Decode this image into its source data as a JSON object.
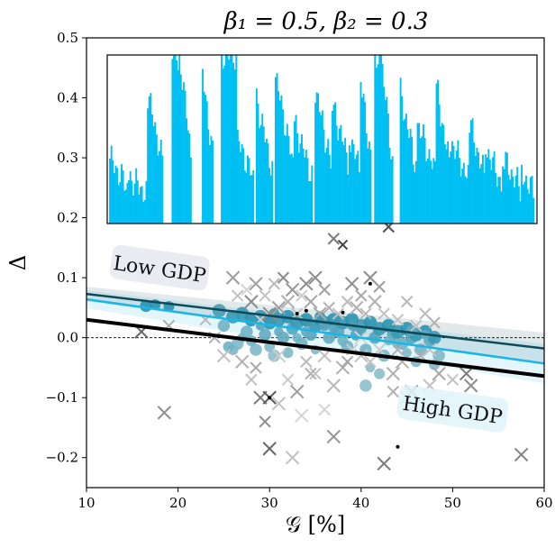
{
  "chart_data": {
    "type": "scatter",
    "title": "β₁ = 0.5, β₂ = 0.3",
    "xlabel": "𝒢 [%]",
    "ylabel": "Δ",
    "xlim": [
      10,
      60
    ],
    "ylim": [
      -0.25,
      0.5
    ],
    "xticks": [
      "10",
      "20",
      "30",
      "40",
      "50",
      "60"
    ],
    "yticks": [
      "−0.2",
      "−0.1",
      "0.0",
      "0.1",
      "0.2",
      "0.3",
      "0.4",
      "0.5"
    ],
    "reference_line_y": 0.0,
    "annotations": [
      {
        "text": "Low GDP",
        "x": 18,
        "y": 0.115,
        "rotation_deg": 8,
        "box_color": "#e6e9ee"
      },
      {
        "text": "High GDP",
        "x": 50,
        "y": -0.12,
        "rotation_deg": 8,
        "box_color": "#dff3fb"
      }
    ],
    "fit_lines": [
      {
        "name": "Low GDP fit",
        "color": "#0e4a57",
        "x": [
          10,
          60
        ],
        "y": [
          0.073,
          -0.018
        ],
        "band": 0.012
      },
      {
        "name": "High GDP fit",
        "color": "#1ab6e8",
        "x": [
          10,
          60
        ],
        "y": [
          0.064,
          -0.043
        ],
        "band": 0.015
      },
      {
        "name": "Overall fit",
        "color": "#000000",
        "x": [
          10,
          60
        ],
        "y": [
          0.03,
          -0.064
        ],
        "band": 0.0
      }
    ],
    "series": [
      {
        "marker": "circle",
        "color": "#0e86a8",
        "x": [
          16.5,
          17.5,
          19,
          24.5,
          25,
          26,
          26.5,
          27,
          27.5,
          28,
          28.5,
          29,
          29.5,
          30,
          30.5,
          31,
          31.5,
          32,
          32.5,
          33,
          33.5,
          34,
          34.5,
          35,
          35.5,
          36,
          36.5,
          37,
          37.5,
          38,
          38.5,
          39,
          39.5,
          40,
          40.5,
          41,
          41.5,
          42,
          42.5,
          43,
          43.5,
          44,
          44.5,
          45,
          45.5,
          46,
          46.5,
          47,
          47.5,
          48,
          48.5,
          26,
          28,
          30,
          32,
          34,
          36,
          38,
          40,
          42,
          44,
          46,
          48,
          27,
          29,
          31,
          33,
          35,
          37,
          39,
          41,
          43,
          45,
          47,
          25.5,
          30.5,
          35.5,
          40.5,
          45.5
        ],
        "y": [
          0.053,
          0.055,
          0.052,
          0.045,
          0.02,
          0.035,
          -0.01,
          0.04,
          0.01,
          0.03,
          -0.02,
          0.035,
          0.005,
          0.025,
          -0.03,
          0.03,
          0.0,
          0.035,
          0.015,
          0.025,
          -0.01,
          0.03,
          0.005,
          0.02,
          0.03,
          0.025,
          0.0,
          0.03,
          0.01,
          0.025,
          -0.015,
          0.03,
          0.005,
          0.02,
          -0.02,
          0.025,
          0.0,
          0.015,
          -0.03,
          0.02,
          0.005,
          0.01,
          -0.01,
          0.015,
          0.0,
          0.005,
          -0.02,
          0.01,
          -0.005,
          0.0,
          -0.03,
          -0.02,
          -0.005,
          -0.015,
          -0.025,
          0.01,
          0.02,
          -0.005,
          0.015,
          -0.06,
          -0.01,
          -0.04,
          -0.045,
          0.0,
          0.02,
          0.01,
          0.0,
          -0.02,
          0.015,
          0.02,
          -0.05,
          -0.005,
          -0.025,
          0.005,
          -0.015,
          0.04,
          0.035,
          -0.08,
          0.012
        ],
        "size": [
          9,
          8,
          8,
          10,
          9,
          10,
          9,
          10,
          9,
          10,
          9,
          10,
          9,
          10,
          9,
          10,
          9,
          10,
          9,
          10,
          9,
          10,
          9,
          10,
          9,
          10,
          9,
          10,
          9,
          10,
          9,
          10,
          9,
          10,
          9,
          10,
          9,
          10,
          9,
          10,
          9,
          10,
          9,
          10,
          9,
          10,
          9,
          10,
          9,
          10,
          9,
          8,
          8,
          8,
          8,
          8,
          8,
          8,
          8,
          8,
          8,
          8,
          8,
          7,
          7,
          7,
          7,
          7,
          7,
          7,
          7,
          7,
          7,
          7,
          8,
          8,
          8,
          9,
          8
        ],
        "shade": [
          0.8,
          0.8,
          0.8,
          0.6,
          0.3,
          0.7,
          0.2,
          0.7,
          0.3,
          0.8,
          0.2,
          0.7,
          0.4,
          0.8,
          0.1,
          0.7,
          0.4,
          0.8,
          0.5,
          0.7,
          0.3,
          0.8,
          0.5,
          0.7,
          0.8,
          0.7,
          0.4,
          0.8,
          0.5,
          0.7,
          0.3,
          0.8,
          0.5,
          0.7,
          0.3,
          0.8,
          0.5,
          0.7,
          0.2,
          0.8,
          0.5,
          0.7,
          0.3,
          0.8,
          0.5,
          0.7,
          0.3,
          0.8,
          0.4,
          0.7,
          0.2,
          0.2,
          0.3,
          0.2,
          0.2,
          0.4,
          0.5,
          0.3,
          0.5,
          0.1,
          0.3,
          0.2,
          0.2,
          0.3,
          0.5,
          0.4,
          0.3,
          0.2,
          0.5,
          0.6,
          0.1,
          0.3,
          0.2,
          0.4,
          0.3,
          0.7,
          0.7,
          0.1,
          0.4
        ]
      },
      {
        "marker": "x",
        "color": "#333333",
        "x": [
          16,
          18.5,
          19,
          24,
          25,
          26,
          26.5,
          27,
          27.5,
          28,
          28,
          28.5,
          29,
          29,
          29.5,
          30,
          30,
          30.5,
          31,
          31,
          31.5,
          32,
          32,
          32.5,
          33,
          33,
          33.5,
          34,
          34,
          34.5,
          35,
          35,
          35.5,
          36,
          36,
          36.5,
          37,
          37,
          37.5,
          38,
          38,
          38.5,
          39,
          39,
          39.5,
          40,
          40,
          40.5,
          41,
          41,
          41.5,
          42,
          42,
          42.5,
          43,
          43.5,
          44,
          44.5,
          45,
          45.5,
          46,
          46.5,
          47,
          47.5,
          48,
          48.5,
          50,
          51.5,
          52,
          57.5,
          30,
          32.5,
          36,
          42.5,
          28.5,
          37,
          43.5,
          29.5,
          31,
          34.5,
          40,
          44,
          47.5,
          38.5,
          45,
          23,
          33.5
        ],
        "y": [
          0.01,
          -0.125,
          0.02,
          0.0,
          -0.03,
          0.1,
          0.07,
          -0.04,
          0.08,
          0.06,
          -0.07,
          0.09,
          0.03,
          -0.1,
          0.07,
          0.04,
          -0.185,
          0.09,
          0.05,
          -0.11,
          0.1,
          0.06,
          -0.07,
          0.08,
          0.04,
          -0.09,
          0.07,
          0.09,
          -0.04,
          0.06,
          0.1,
          -0.06,
          0.04,
          0.08,
          -0.03,
          0.05,
          0.165,
          -0.08,
          0.04,
          0.155,
          -0.05,
          0.06,
          0.09,
          -0.02,
          0.05,
          0.07,
          -0.03,
          0.04,
          0.1,
          -0.04,
          0.06,
          0.085,
          -0.02,
          0.04,
          0.185,
          -0.06,
          0.03,
          -0.04,
          0.06,
          -0.09,
          0.02,
          -0.03,
          0.04,
          -0.02,
          0.025,
          -0.06,
          -0.07,
          -0.06,
          -0.08,
          -0.195,
          -0.1,
          -0.2,
          -0.12,
          -0.21,
          -0.05,
          -0.165,
          -0.09,
          -0.14,
          -0.03,
          -0.06,
          0.0,
          -0.02,
          -0.08,
          -0.04,
          -0.1,
          0.03,
          -0.13
        ],
        "size": [
          7,
          7,
          6,
          6,
          7,
          7,
          6,
          7,
          6,
          7,
          6,
          7,
          6,
          7,
          6,
          7,
          7,
          6,
          7,
          7,
          6,
          7,
          6,
          7,
          6,
          7,
          6,
          7,
          6,
          7,
          7,
          6,
          7,
          6,
          7,
          6,
          6,
          7,
          6,
          5,
          7,
          6,
          7,
          6,
          7,
          6,
          7,
          6,
          7,
          6,
          7,
          6,
          7,
          6,
          6,
          7,
          6,
          7,
          6,
          7,
          6,
          7,
          6,
          7,
          6,
          7,
          6,
          7,
          7,
          7,
          7,
          7,
          6,
          7,
          6,
          7,
          6,
          6,
          7,
          6,
          7,
          6,
          7,
          6,
          7,
          6,
          7
        ],
        "shade": [
          0.7,
          0.5,
          0.3,
          0.3,
          0.2,
          0.4,
          0.2,
          0.3,
          0.1,
          0.5,
          0.2,
          0.4,
          0.15,
          0.6,
          0.2,
          0.5,
          0.7,
          0.25,
          0.4,
          0.2,
          0.5,
          0.3,
          0.15,
          0.45,
          0.2,
          0.4,
          0.15,
          0.5,
          0.25,
          0.35,
          0.5,
          0.2,
          0.35,
          0.4,
          0.2,
          0.3,
          0.6,
          0.25,
          0.2,
          0.9,
          0.3,
          0.25,
          0.5,
          0.15,
          0.3,
          0.35,
          0.2,
          0.25,
          0.5,
          0.2,
          0.3,
          0.4,
          0.15,
          0.2,
          0.85,
          0.3,
          0.2,
          0.3,
          0.25,
          0.5,
          0.2,
          0.3,
          0.25,
          0.2,
          0.3,
          0.35,
          0.2,
          0.6,
          0.5,
          0.55,
          0.8,
          0.2,
          0.1,
          0.6,
          0.35,
          0.45,
          0.3,
          0.5,
          0.15,
          0.3,
          0.1,
          0.3,
          0.2,
          0.35,
          0.15,
          0.25,
          0.1,
          0.2
        ]
      },
      {
        "marker": "dot",
        "color": "#000000",
        "x": [
          30,
          34,
          38,
          44,
          33,
          41
        ],
        "y": [
          -0.1,
          0.045,
          0.042,
          -0.182,
          0.04,
          0.09
        ],
        "size": [
          2,
          2,
          2,
          2,
          2,
          2
        ],
        "shade": [
          1,
          1,
          1,
          1,
          1,
          1
        ]
      }
    ],
    "inset": {
      "type": "bar",
      "color": "#00bff3",
      "y_bottom": 0.19,
      "y_top": 0.475,
      "segments": [
        {
          "start": 12.5,
          "end": 14.5,
          "top": 0.3,
          "bottom": 0.19,
          "decay": 0.6
        },
        {
          "start": 14.5,
          "end": 16.5,
          "top": 0.27,
          "bottom": 0.19,
          "decay": 0.5
        },
        {
          "start": 16.5,
          "end": 18.2,
          "top": 0.41,
          "bottom": 0.19,
          "decay": 0.7
        },
        {
          "start": 19.1,
          "end": 20.0,
          "top": 0.475,
          "bottom": 0.19,
          "decay": 0.0
        },
        {
          "start": 20.0,
          "end": 21.2,
          "top": 0.46,
          "bottom": 0.19,
          "decay": 0.75
        },
        {
          "start": 22.3,
          "end": 23.5,
          "top": 0.44,
          "bottom": 0.19,
          "decay": 0.7
        },
        {
          "start": 24.3,
          "end": 26.0,
          "top": 0.475,
          "bottom": 0.19,
          "decay": 0.0
        },
        {
          "start": 26.0,
          "end": 27.8,
          "top": 0.33,
          "bottom": 0.19,
          "decay": 0.6
        },
        {
          "start": 28.0,
          "end": 29.8,
          "top": 0.4,
          "bottom": 0.19,
          "decay": 0.75
        },
        {
          "start": 30.0,
          "end": 32.0,
          "top": 0.44,
          "bottom": 0.19,
          "decay": 0.8
        },
        {
          "start": 32.0,
          "end": 34.0,
          "top": 0.36,
          "bottom": 0.19,
          "decay": 0.7
        },
        {
          "start": 34.2,
          "end": 36.0,
          "top": 0.42,
          "bottom": 0.19,
          "decay": 0.75
        },
        {
          "start": 36.0,
          "end": 37.8,
          "top": 0.39,
          "bottom": 0.19,
          "decay": 0.6
        },
        {
          "start": 37.8,
          "end": 39.0,
          "top": 0.34,
          "bottom": 0.19,
          "decay": 0.5
        },
        {
          "start": 39.0,
          "end": 40.2,
          "top": 0.43,
          "bottom": 0.19,
          "decay": 0.7
        },
        {
          "start": 40.5,
          "end": 41.3,
          "top": 0.475,
          "bottom": 0.19,
          "decay": 0.0
        },
        {
          "start": 41.3,
          "end": 42.5,
          "top": 0.45,
          "bottom": 0.19,
          "decay": 0.8
        },
        {
          "start": 43.2,
          "end": 45.0,
          "top": 0.41,
          "bottom": 0.19,
          "decay": 0.75
        },
        {
          "start": 45.0,
          "end": 47.0,
          "top": 0.36,
          "bottom": 0.19,
          "decay": 0.65
        },
        {
          "start": 47.0,
          "end": 48.5,
          "top": 0.42,
          "bottom": 0.19,
          "decay": 0.75
        },
        {
          "start": 48.5,
          "end": 50.5,
          "top": 0.33,
          "bottom": 0.19,
          "decay": 0.6
        },
        {
          "start": 50.5,
          "end": 52.2,
          "top": 0.36,
          "bottom": 0.19,
          "decay": 0.7
        },
        {
          "start": 52.2,
          "end": 54.0,
          "top": 0.32,
          "bottom": 0.19,
          "decay": 0.65
        },
        {
          "start": 54.0,
          "end": 56.0,
          "top": 0.3,
          "bottom": 0.19,
          "decay": 0.6
        },
        {
          "start": 56.0,
          "end": 57.4,
          "top": 0.275,
          "bottom": 0.19,
          "decay": 0.5
        }
      ]
    }
  }
}
